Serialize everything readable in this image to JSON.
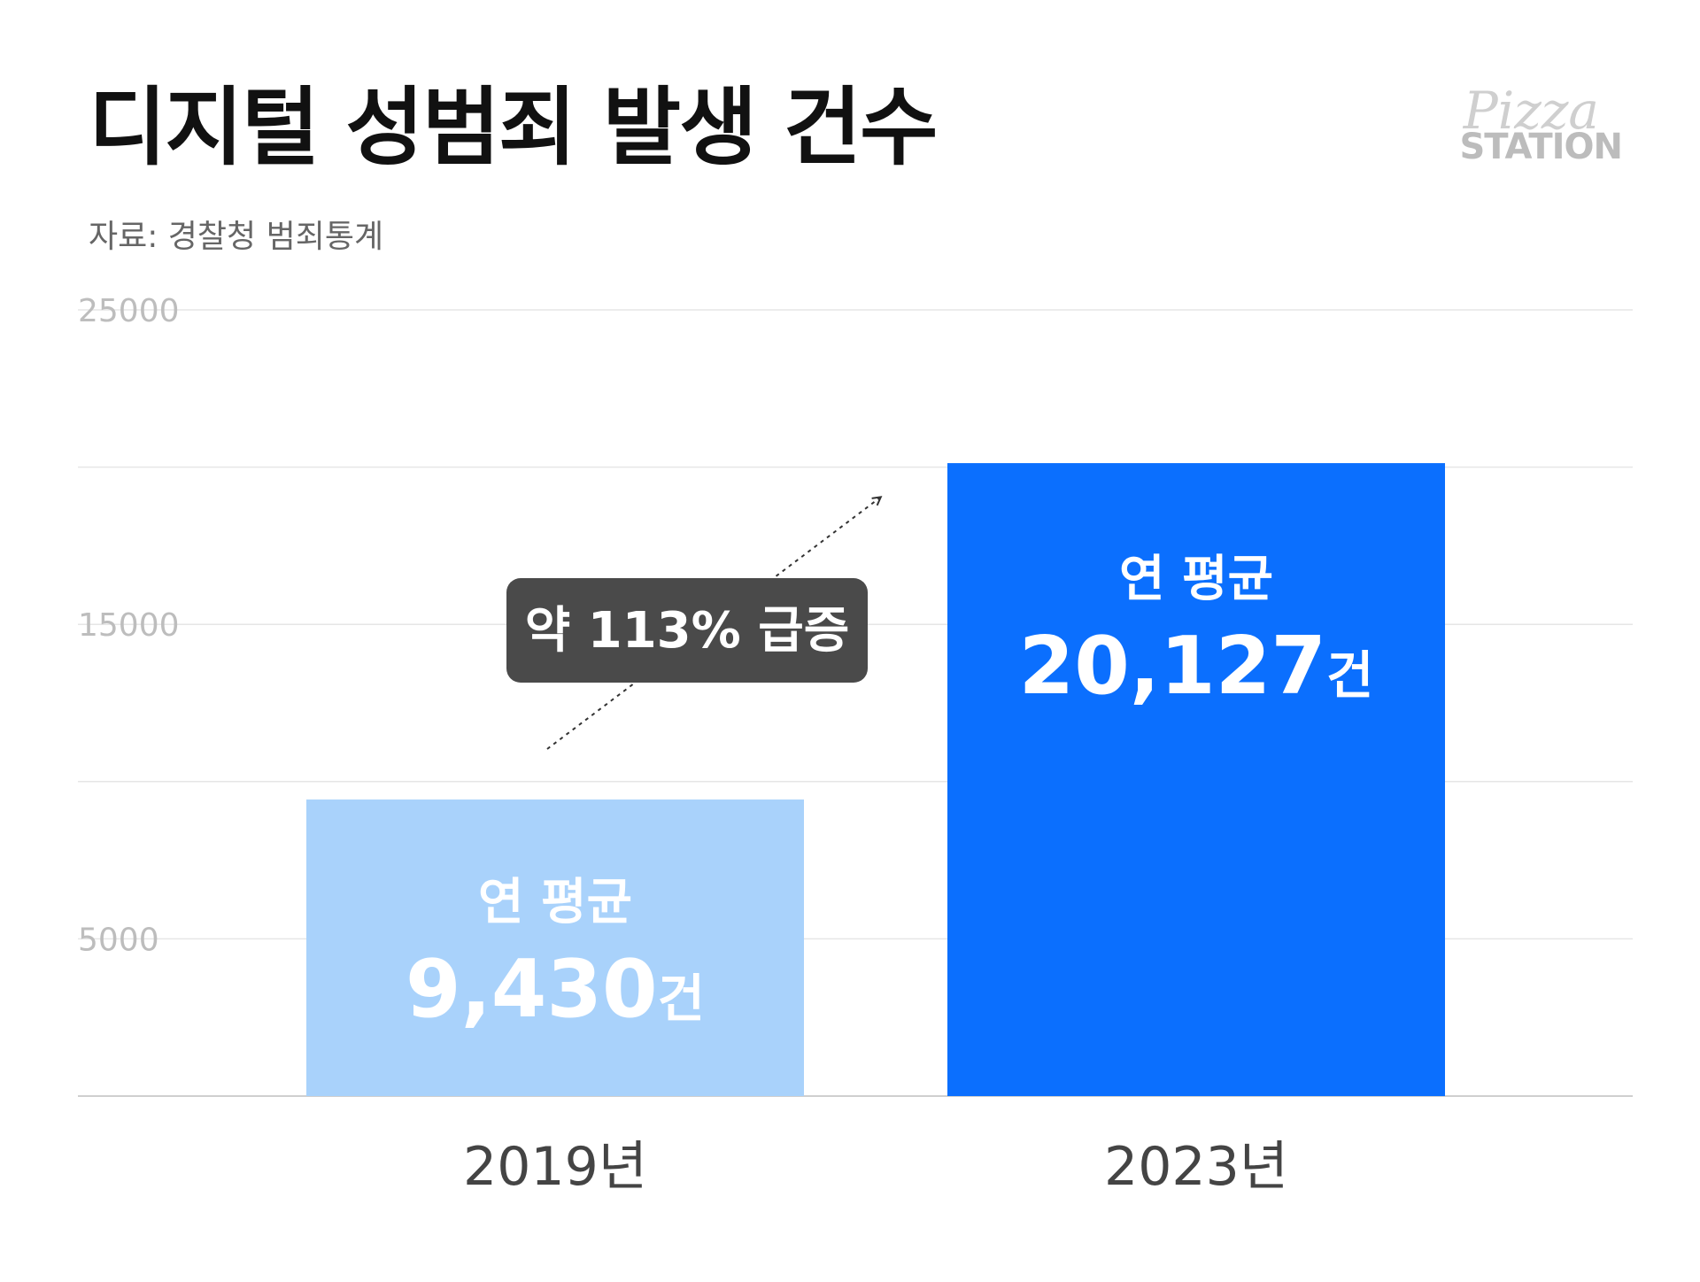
{
  "header": {
    "title": "디지털 성범죄 발생 건수",
    "source": "자료: 경찰청 범죄통계"
  },
  "logo": {
    "script": "Pizza",
    "word": "STATION"
  },
  "chart_data": {
    "type": "bar",
    "title": "디지털 성범죄 발생 건수",
    "categories": [
      "2019년",
      "2023년"
    ],
    "values": [
      9430,
      20127
    ],
    "ylim": [
      0,
      25000
    ],
    "yticks": [
      25000,
      15000,
      5000
    ],
    "grid": true,
    "bar_labels": [
      {
        "top": "연 평균",
        "value": "9,430",
        "unit": "건"
      },
      {
        "top": "연 평균",
        "value": "20,127",
        "unit": "건"
      }
    ],
    "annotation": "약 113% 급증",
    "colors": {
      "bars": [
        "#a9d2fb",
        "#0b6ffe"
      ],
      "grid": "#e6e6e6",
      "tick": "#bdbdbd",
      "category": "#444444",
      "annotation_bg": "#4a4a4a"
    }
  }
}
